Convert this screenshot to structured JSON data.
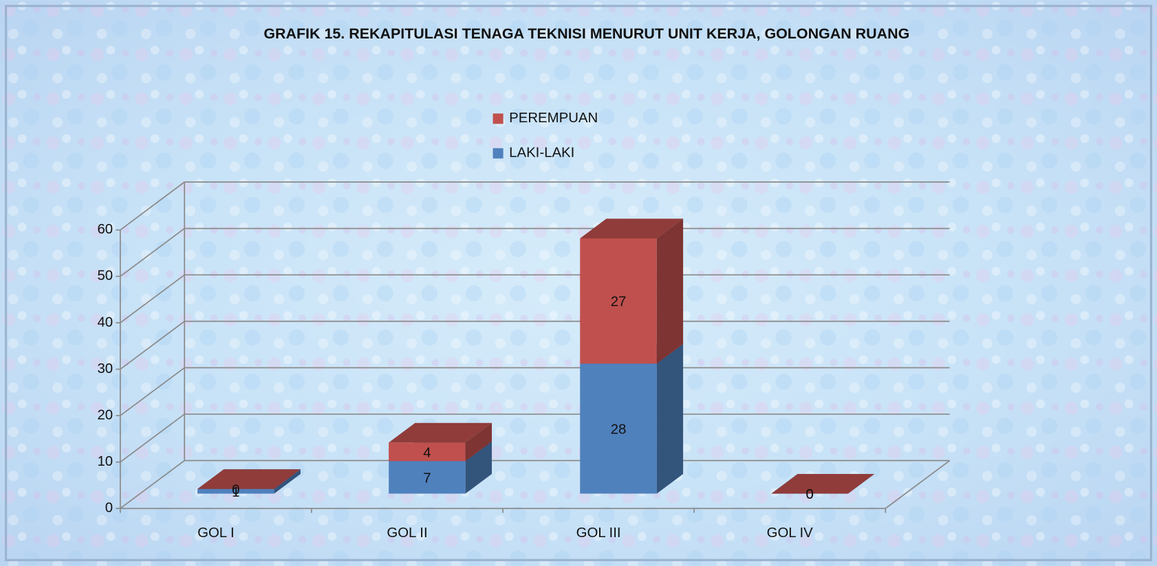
{
  "chart_data": {
    "type": "bar3d_stacked",
    "title": "GRAFIK 15. REKAPITULASI  TENAGA TEKNISI MENURUT UNIT KERJA, GOLONGAN RUANG",
    "categories": [
      "GOL I",
      "GOL II",
      "GOL III",
      "GOL IV"
    ],
    "series": [
      {
        "name": "LAKI-LAKI",
        "color": "#4f81bd",
        "values": [
          1,
          7,
          28,
          0
        ]
      },
      {
        "name": "PEREMPUAN",
        "color": "#c0504d",
        "values": [
          0,
          4,
          27,
          0
        ]
      }
    ],
    "ylim": [
      0,
      60
    ],
    "yticks": [
      0,
      10,
      20,
      30,
      40,
      50,
      60
    ],
    "grid": true,
    "legend": "top"
  }
}
